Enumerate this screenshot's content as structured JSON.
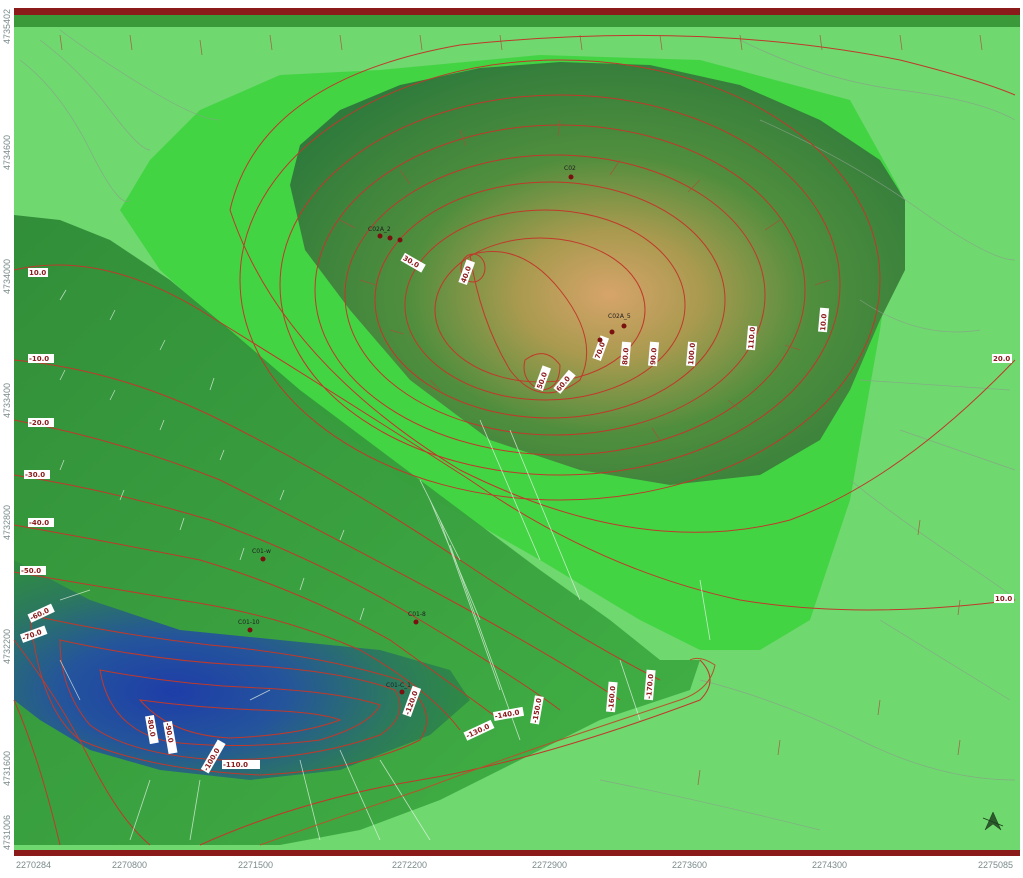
{
  "map": {
    "x_ticks": [
      "2270284",
      "2270800",
      "2271500",
      "2272200",
      "2272900",
      "2273600",
      "2274300",
      "2275085"
    ],
    "y_ticks": [
      "4735402",
      "4734600",
      "4734000",
      "4733400",
      "4732800",
      "4732200",
      "4731600",
      "4731006"
    ],
    "wells": [
      {
        "label": "C02"
      },
      {
        "label": "C02A_2"
      },
      {
        "label": "C02A_5"
      },
      {
        "label": "C01-w"
      },
      {
        "label": "C01-10"
      },
      {
        "label": "C01-8"
      },
      {
        "label": "C01-C_1"
      }
    ],
    "contour_labels": [
      "10.0",
      "20.0",
      "-10.0",
      "-20.0",
      "-30.0",
      "-40.0",
      "-50.0",
      "-60.0",
      "-70.0",
      "-80.0",
      "30.0",
      "40.0",
      "50.0",
      "60.0",
      "70.0",
      "80.0",
      "90.0",
      "100.0",
      "110.0",
      "-90.0",
      "-100.0",
      "-110.0",
      "-120.0",
      "-130.0",
      "-140.0",
      "-150.0",
      "-160.0",
      "-170.0"
    ],
    "colors": {
      "top_bar": "#8b1a1a",
      "bottom_bar": "#8b1a1a",
      "background": "#6fd86f",
      "contour": "#c0392b",
      "mound_center": "#c9a46b",
      "depression_center": "#1f3fa8"
    },
    "north_arrow_icon": "north-arrow-icon"
  }
}
